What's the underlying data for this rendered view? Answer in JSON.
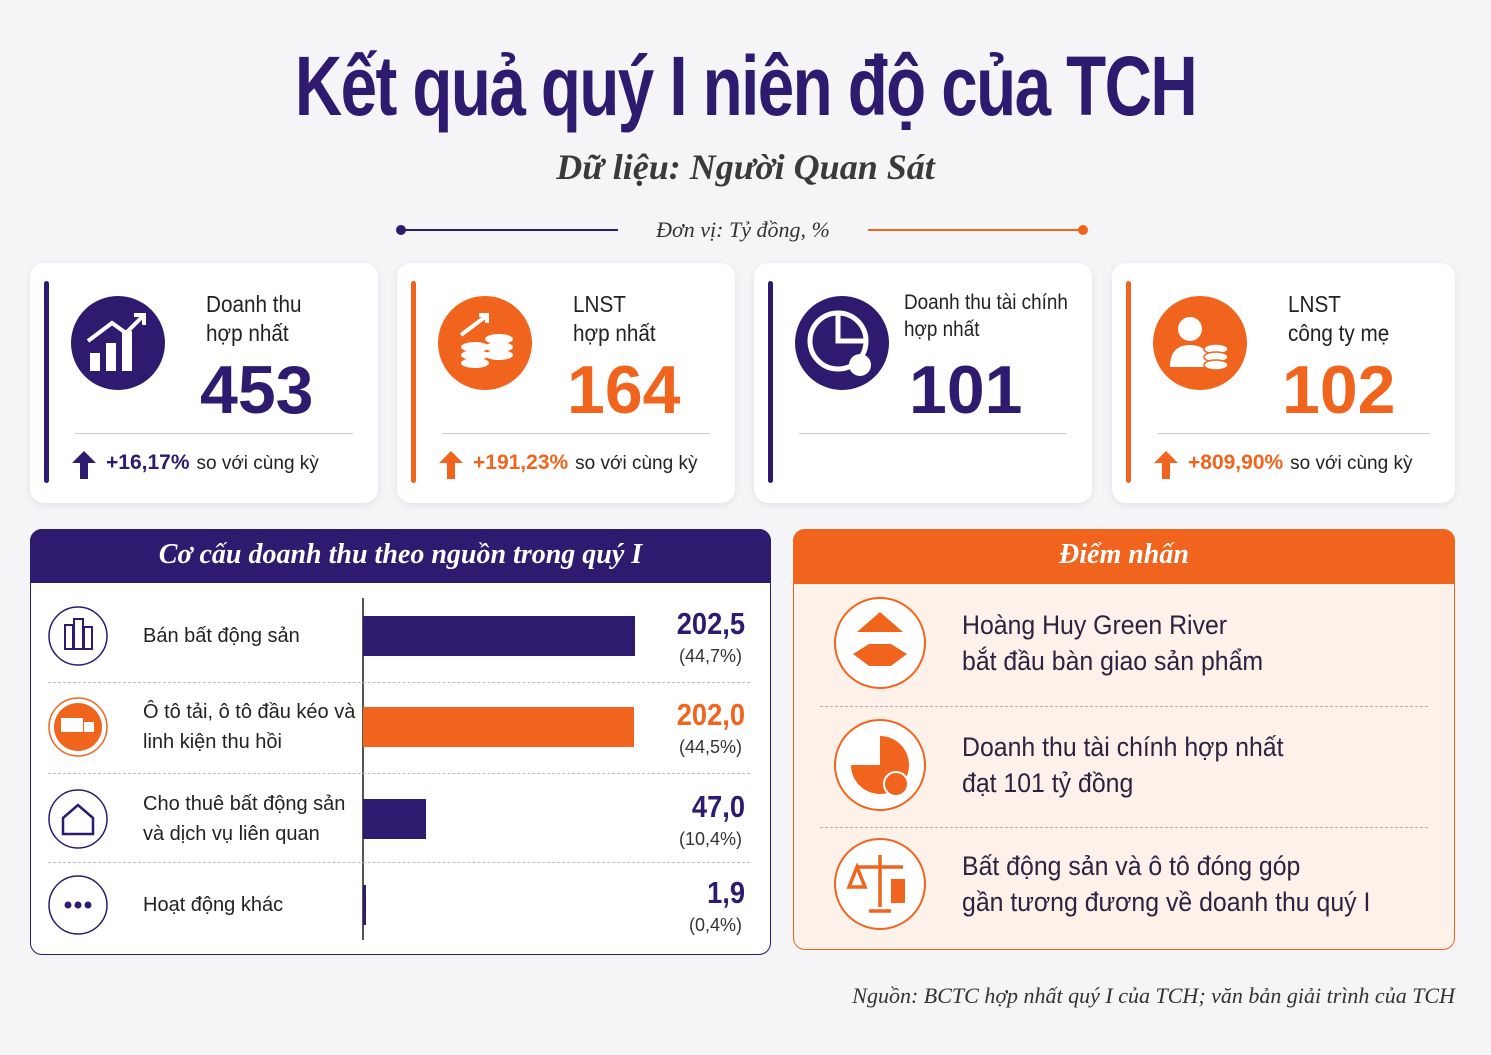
{
  "header": {
    "title": "Kết quả quý I niên độ của TCH",
    "subtitle": "Dữ liệu: Người Quan Sát",
    "unit": "Đơn vị: Tỷ đồng, %"
  },
  "kpis": [
    {
      "label_lines": [
        "Doanh thu",
        "hợp nhất"
      ],
      "value": 453,
      "change": "+16,17%",
      "change_note": "so với cùng kỳ",
      "color": "#2e1a6e"
    },
    {
      "label_lines": [
        "LNST",
        "hợp nhất"
      ],
      "value": 164,
      "change": "+191,23%",
      "change_note": "so với cùng kỳ",
      "color": "#f0641e"
    },
    {
      "label_lines": [
        "Doanh thu tài chính",
        "hợp nhất"
      ],
      "value": 101,
      "color": "#2e1a6e"
    },
    {
      "label_lines": [
        "LNST",
        "công ty mẹ"
      ],
      "value": 102,
      "change": "+809,90%",
      "change_note": "so với cùng kỳ",
      "color": "#f0641e"
    }
  ],
  "chart_data": {
    "type": "bar",
    "title": "Cơ cấu doanh thu theo nguồn trong quý I",
    "categories": [
      "Bán bất động sản",
      "Ô tô tải, ô tô đầu kéo và linh kiện thu hồi",
      "Cho thuê bất động sản và dịch vụ liên quan",
      "Hoạt động khác"
    ],
    "values": [
      202.5,
      202.0,
      47.0,
      1.9
    ],
    "value_labels": [
      "202,5",
      "202,0",
      "47,0",
      "1,9"
    ],
    "share_labels": [
      "(44,7%)",
      "(44,5%)",
      "(10,4%)",
      "(0,4%)"
    ],
    "colors": [
      "#2e1a6e",
      "#f0641e",
      "#2e1a6e",
      "#2e1a6e"
    ]
  },
  "highlights": {
    "title": "Điểm nhấn",
    "items": [
      {
        "lines": [
          "Hoàng Huy Green River",
          "bắt đầu bàn giao sản phẩm"
        ]
      },
      {
        "lines": [
          "Doanh thu tài chính hợp nhất",
          "đạt 101 tỷ đồng"
        ]
      },
      {
        "lines": [
          "Bất động sản và ô tô đóng góp",
          "gần tương đương về doanh thu quý I"
        ]
      }
    ]
  },
  "footer": {
    "source": "Nguồn: BCTC hợp nhất quý I của TCH; văn bản giải trình của TCH"
  }
}
